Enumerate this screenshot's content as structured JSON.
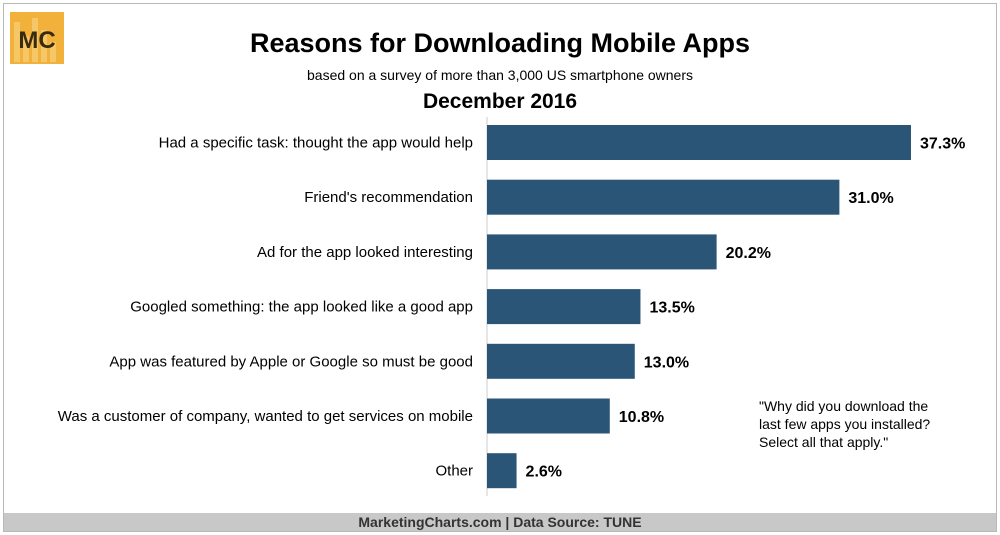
{
  "logo": {
    "text": "MC",
    "color": "#f2b13a"
  },
  "footer": {
    "text": "MarketingCharts.com | Data Source: TUNE"
  },
  "note": "\"Why did you download the\nlast few apps you installed?\nSelect all that apply.\"",
  "chart_data": {
    "type": "bar",
    "orientation": "horizontal",
    "title": "Reasons for Downloading Mobile Apps",
    "subtitle": "based on a survey of more than 3,000 US smartphone owners",
    "period": "December 2016",
    "categories": [
      "Had a specific task: thought the app would help",
      "Friend's recommendation",
      "Ad for the app looked interesting",
      "Googled something: the app looked like a good app",
      "App was featured by Apple or Google so must be good",
      "Was a customer of company, wanted to get services on mobile",
      "Other"
    ],
    "values": [
      37.3,
      31.0,
      20.2,
      13.5,
      13.0,
      10.8,
      2.6
    ],
    "data_labels": [
      "37.3%",
      "31.0%",
      "20.2%",
      "13.5%",
      "13.0%",
      "10.8%",
      "2.6%"
    ],
    "unit": "%",
    "xlim": [
      0,
      37.3
    ],
    "grid": false,
    "bar_color": "#2b5576"
  }
}
